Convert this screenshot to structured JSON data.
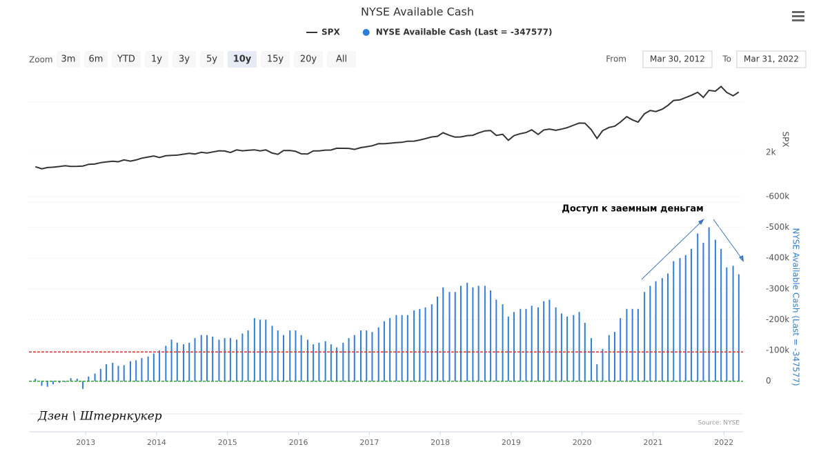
{
  "chart_data": {
    "type": "stock",
    "title": "NYSE Available Cash",
    "zoom_label": "Zoom",
    "zoom_buttons": [
      "3m",
      "6m",
      "YTD",
      "1y",
      "3y",
      "5y",
      "10y",
      "15y",
      "20y",
      "All"
    ],
    "zoom_selected": 6,
    "from_label": "From",
    "from_value": "Mar 30, 2012",
    "to_label": "To",
    "to_value": "Mar 31, 2022",
    "annotation": "Доступ к заемным деньгам",
    "watermark": "Дзен \\ Штернкукер",
    "credits": "Source: NYSE",
    "x": [
      2012.29,
      2012.38,
      2012.46,
      2012.54,
      2012.63,
      2012.71,
      2012.79,
      2012.88,
      2012.96,
      2013.04,
      2013.13,
      2013.21,
      2013.29,
      2013.38,
      2013.46,
      2013.54,
      2013.63,
      2013.71,
      2013.79,
      2013.88,
      2013.96,
      2014.04,
      2014.13,
      2014.21,
      2014.29,
      2014.38,
      2014.46,
      2014.54,
      2014.63,
      2014.71,
      2014.79,
      2014.88,
      2014.96,
      2015.04,
      2015.13,
      2015.21,
      2015.29,
      2015.38,
      2015.46,
      2015.54,
      2015.63,
      2015.71,
      2015.79,
      2015.88,
      2015.96,
      2016.04,
      2016.13,
      2016.21,
      2016.29,
      2016.38,
      2016.46,
      2016.54,
      2016.63,
      2016.71,
      2016.79,
      2016.88,
      2016.96,
      2017.04,
      2017.13,
      2017.21,
      2017.29,
      2017.38,
      2017.46,
      2017.54,
      2017.63,
      2017.71,
      2017.79,
      2017.88,
      2017.96,
      2018.04,
      2018.13,
      2018.21,
      2018.29,
      2018.38,
      2018.46,
      2018.54,
      2018.63,
      2018.71,
      2018.79,
      2018.88,
      2018.96,
      2019.04,
      2019.13,
      2019.21,
      2019.29,
      2019.38,
      2019.46,
      2019.54,
      2019.63,
      2019.71,
      2019.79,
      2019.88,
      2019.96,
      2020.04,
      2020.13,
      2020.21,
      2020.29,
      2020.38,
      2020.46,
      2020.54,
      2020.63,
      2020.71,
      2020.79,
      2020.88,
      2020.96,
      2021.04,
      2021.13,
      2021.21,
      2021.29,
      2021.38,
      2021.46,
      2021.54,
      2021.63,
      2021.71,
      2021.79,
      2021.88,
      2021.96,
      2022.04,
      2022.13,
      2022.21
    ],
    "xlim": [
      2012.2,
      2022.27
    ],
    "xticks": [
      2013,
      2014,
      2015,
      2016,
      2017,
      2018,
      2019,
      2020,
      2021,
      2022
    ],
    "series": [
      {
        "name": "SPX",
        "color": "#333333",
        "pane": "top",
        "values": [
          1398,
          1310,
          1362,
          1379,
          1407,
          1441,
          1412,
          1416,
          1426,
          1498,
          1515,
          1569,
          1598,
          1631,
          1606,
          1686,
          1633,
          1682,
          1757,
          1806,
          1848,
          1783,
          1859,
          1872,
          1884,
          1924,
          1960,
          1931,
          2003,
          1972,
          2018,
          2068,
          2059,
          1995,
          2105,
          2068,
          2086,
          2107,
          2063,
          2104,
          1972,
          1920,
          2079,
          2080,
          2044,
          1940,
          1932,
          2060,
          2065,
          2097,
          2099,
          2174,
          2171,
          2168,
          2126,
          2199,
          2239,
          2279,
          2364,
          2363,
          2384,
          2412,
          2423,
          2470,
          2472,
          2519,
          2575,
          2648,
          2674,
          2824,
          2714,
          2641,
          2648,
          2705,
          2718,
          2816,
          2902,
          2914,
          2712,
          2760,
          2507,
          2704,
          2784,
          2834,
          2946,
          2752,
          2942,
          2980,
          2926,
          2977,
          3038,
          3141,
          3231,
          3226,
          2954,
          2585,
          2912,
          3044,
          3100,
          3271,
          3500,
          3363,
          3270,
          3622,
          3756,
          3714,
          3811,
          3973,
          4181,
          4204,
          4298,
          4395,
          4523,
          4308,
          4605,
          4567,
          4766,
          4516,
          4374,
          4530
        ]
      },
      {
        "name": "NYSE Available Cash (Last = -347577)",
        "color": "#2f7ed8",
        "pane": "bottom",
        "values": [
          -8000,
          15000,
          18000,
          10000,
          5000,
          3000,
          -10000,
          -8000,
          25000,
          -15000,
          -25000,
          -40000,
          -55000,
          -60000,
          -50000,
          -52000,
          -65000,
          -68000,
          -75000,
          -80000,
          -90000,
          -100000,
          -115000,
          -135000,
          -125000,
          -120000,
          -125000,
          -140000,
          -150000,
          -150000,
          -145000,
          -135000,
          -140000,
          -140000,
          -135000,
          -155000,
          -165000,
          -205000,
          -200000,
          -200000,
          -180000,
          -165000,
          -150000,
          -165000,
          -165000,
          -150000,
          -135000,
          -120000,
          -125000,
          -130000,
          -120000,
          -110000,
          -125000,
          -140000,
          -150000,
          -165000,
          -165000,
          -160000,
          -175000,
          -195000,
          -205000,
          -215000,
          -215000,
          -215000,
          -230000,
          -235000,
          -240000,
          -250000,
          -275000,
          -305000,
          -290000,
          -290000,
          -310000,
          -320000,
          -305000,
          -310000,
          -310000,
          -295000,
          -265000,
          -250000,
          -210000,
          -225000,
          -235000,
          -235000,
          -245000,
          -240000,
          -260000,
          -265000,
          -240000,
          -220000,
          -210000,
          -215000,
          -225000,
          -190000,
          -140000,
          -55000,
          -105000,
          -150000,
          -160000,
          -205000,
          -235000,
          -235000,
          -235000,
          -290000,
          -310000,
          -325000,
          -335000,
          -350000,
          -390000,
          -400000,
          -410000,
          -430000,
          -480000,
          -450000,
          -500000,
          -460000,
          -430000,
          -370000,
          -375000,
          -347577
        ]
      }
    ],
    "ylim": [
      0,
      5500
    ],
    "yticks": [
      {
        "value": 2000,
        "label": "2k"
      }
    ],
    "y_title": "SPX",
    "y2lim": [
      30000,
      -600000
    ],
    "y2ticks": [
      {
        "value": 0,
        "label": "0"
      },
      {
        "value": -100000,
        "label": "-100k"
      },
      {
        "value": -200000,
        "label": "-200k"
      },
      {
        "value": -300000,
        "label": "-300k"
      },
      {
        "value": -400000,
        "label": "-400k"
      },
      {
        "value": -500000,
        "label": "-500k"
      },
      {
        "value": -600000,
        "label": "-600k"
      }
    ],
    "plot_lines": [
      {
        "value": -95000,
        "color": "#e03030"
      },
      {
        "value": 0,
        "color": "#2ca02c"
      }
    ]
  }
}
